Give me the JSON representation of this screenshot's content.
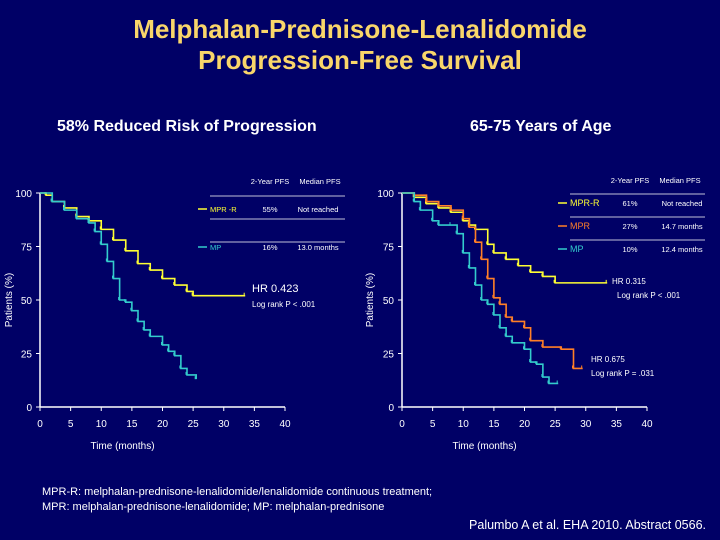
{
  "title_line1": "Melphalan-Prednisone-Lenalidomide",
  "title_line2": "Progression-Free Survival",
  "footnote_line1": "MPR-R: melphalan-prednisone-lenalidomide/lenalidomide continuous treatment;",
  "footnote_line2": "MPR: melphalan-prednisone-lenalidomide; MP: melphalan-prednisone",
  "citation": "Palumbo A et al. EHA 2010. Abstract 0566.",
  "chart_data": [
    {
      "type": "line",
      "subtitle": "58% Reduced Risk of Progression",
      "xlabel": "Time (months)",
      "ylabel": "Patients (%)",
      "xlim": [
        0,
        40
      ],
      "ylim": [
        0,
        100
      ],
      "xticks": [
        "0",
        "5",
        "10",
        "15",
        "20",
        "25",
        "30",
        "35",
        "40"
      ],
      "yticks": [
        "0",
        "25",
        "50",
        "75",
        "100"
      ],
      "table_header": [
        "2-Year PFS",
        "Median PFS"
      ],
      "annotations": [
        "HR 0.423",
        "Log rank P < .001"
      ],
      "series": [
        {
          "name": "MPR -R",
          "color": "#ffff33",
          "pfs2": "55%",
          "median": "Not reached",
          "x": [
            0,
            1,
            2,
            4,
            6,
            8,
            10,
            12,
            14,
            16,
            18,
            20,
            22,
            24,
            25,
            33.5
          ],
          "y": [
            100,
            99,
            96,
            93,
            89,
            87,
            83,
            78,
            73,
            67,
            64,
            60,
            57,
            54,
            52,
            52
          ]
        },
        {
          "name": "MP",
          "color": "#33cccc",
          "pfs2": "16%",
          "median": "13.0 months",
          "x": [
            0,
            2,
            4,
            6,
            8,
            9,
            10,
            11,
            12,
            13,
            14,
            15,
            16,
            17,
            18,
            20,
            21,
            22,
            23,
            24,
            25.5
          ],
          "y": [
            100,
            96,
            92,
            88,
            86,
            82,
            76,
            68,
            60,
            50,
            49,
            45,
            40,
            36,
            33,
            29,
            26,
            24,
            18,
            15,
            13
          ]
        }
      ]
    },
    {
      "type": "line",
      "subtitle": "65-75 Years of Age",
      "xlabel": "Time (months)",
      "ylabel": "Patients (%)",
      "xlim": [
        0,
        40
      ],
      "ylim": [
        0,
        100
      ],
      "xticks": [
        "0",
        "5",
        "10",
        "15",
        "20",
        "25",
        "30",
        "35",
        "40"
      ],
      "yticks": [
        "0",
        "25",
        "50",
        "75",
        "100"
      ],
      "table_header": [
        "2-Year PFS",
        "Median PFS"
      ],
      "annotations": [
        "HR 0.315",
        "Log rank P < .001",
        "HR 0.675",
        "Log rank P = .031"
      ],
      "series": [
        {
          "name": "MPR-R",
          "color": "#ffff33",
          "pfs2": "61%",
          "median": "Not reached",
          "x": [
            0,
            2,
            4,
            6,
            8,
            10,
            11,
            12,
            14,
            15,
            17,
            19,
            21,
            23,
            25,
            33.5
          ],
          "y": [
            100,
            98,
            95,
            93,
            91,
            87,
            85,
            83,
            76,
            72,
            69,
            66,
            63,
            61,
            58,
            58
          ]
        },
        {
          "name": "MPR",
          "color": "#ff7f27",
          "pfs2": "27%",
          "median": "14.7 months",
          "x": [
            0,
            2,
            4,
            6,
            8,
            10,
            11,
            12,
            13,
            14,
            15,
            16,
            17,
            18,
            20,
            21,
            23,
            26,
            28,
            29.5
          ],
          "y": [
            100,
            99,
            96,
            94,
            92,
            88,
            84,
            77,
            69,
            60,
            51,
            48,
            42,
            40,
            37,
            31,
            28,
            27,
            18,
            18
          ]
        },
        {
          "name": "MP",
          "color": "#33cccc",
          "pfs2": "10%",
          "median": "12.4 months",
          "x": [
            0,
            2,
            3,
            5,
            6,
            8,
            9,
            10,
            11,
            12,
            13,
            14,
            15,
            16,
            17,
            18,
            20,
            21,
            22,
            23,
            24,
            25.5
          ],
          "y": [
            100,
            96,
            92,
            87,
            85,
            85,
            81,
            72,
            65,
            57,
            50,
            48,
            43,
            37,
            33,
            30,
            27,
            21,
            20,
            14,
            11,
            11
          ]
        }
      ]
    }
  ]
}
